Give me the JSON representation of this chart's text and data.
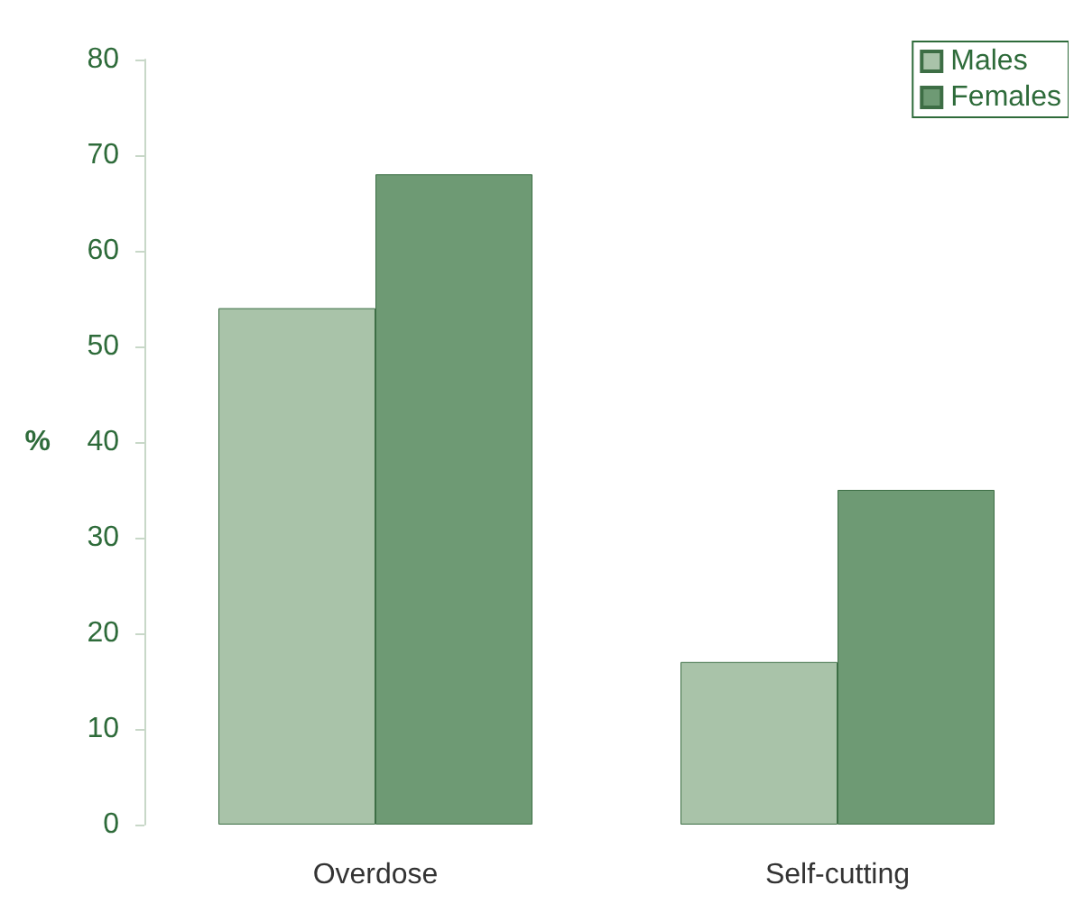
{
  "chart_data": {
    "type": "bar",
    "ylabel": "%",
    "categories": [
      "Overdose",
      "Self-cutting"
    ],
    "series": [
      {
        "name": "Males",
        "color": "#a9c3a9",
        "values": [
          54,
          17
        ]
      },
      {
        "name": "Females",
        "color": "#6e9a74",
        "values": [
          68,
          35
        ]
      }
    ],
    "ylim": [
      0,
      80
    ],
    "yticks": [
      0,
      10,
      20,
      30,
      40,
      50,
      60,
      70,
      80
    ],
    "grid": false,
    "legend": "top right"
  }
}
